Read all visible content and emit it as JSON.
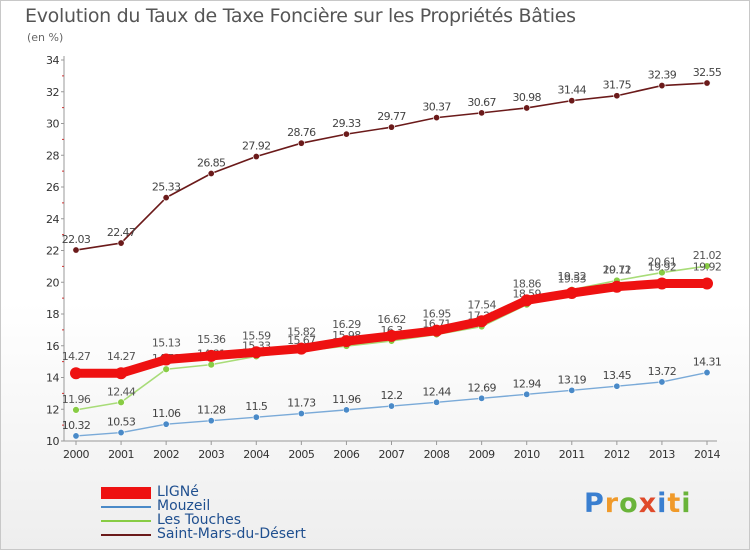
{
  "header": {
    "title": "Evolution du Taux de Taxe Foncière sur les Propriétés Bâties",
    "unit_note": "(en %)"
  },
  "logo": {
    "letters": [
      "P",
      "r",
      "o",
      "x",
      "i",
      "t",
      "i"
    ],
    "colors": [
      "#3a7fd0",
      "#f09a2a",
      "#6ab43a",
      "#e04a2a",
      "#3a7fd0",
      "#f09a2a",
      "#6ab43a"
    ]
  },
  "chart_data": {
    "type": "line",
    "x": [
      2000,
      2001,
      2002,
      2003,
      2004,
      2005,
      2006,
      2007,
      2008,
      2009,
      2010,
      2011,
      2012,
      2013,
      2014
    ],
    "ylim": [
      10,
      34
    ],
    "yticks": [
      10,
      12,
      14,
      16,
      18,
      20,
      22,
      24,
      26,
      28,
      30,
      32,
      34
    ],
    "grid": false,
    "legend_position": "bottom-left",
    "series": [
      {
        "name": "Saint-Mars-du-Désert",
        "color": "#6b1a1a",
        "values": [
          22.03,
          22.47,
          25.33,
          26.85,
          27.92,
          28.76,
          29.33,
          29.77,
          30.37,
          30.67,
          30.98,
          31.44,
          31.75,
          32.39,
          32.55
        ],
        "labels": [
          "22.03",
          "22.47",
          "25.33",
          "26.85",
          "27.92",
          "28.76",
          "29.33",
          "29.77",
          "30.37",
          "30.67",
          "30.98",
          "31.44",
          "31.75",
          "32.39",
          "32.55"
        ]
      },
      {
        "name": "Les Touches",
        "color": "#88cc44",
        "values": [
          11.96,
          12.44,
          14.52,
          14.81,
          15.33,
          15.67,
          15.98,
          16.3,
          16.71,
          17.21,
          18.59,
          19.53,
          20.11,
          20.61,
          21.02
        ],
        "labels": [
          "11.96",
          "12.44",
          "14.52",
          "14.81",
          "15.33",
          "15.67",
          "15.98",
          "16.3",
          "16.71",
          "17.21",
          "18.59",
          "19.53",
          "20.11",
          "20.61",
          "21.02"
        ]
      },
      {
        "name": "Mouzeil",
        "color": "#4a8ac8",
        "values": [
          10.32,
          10.53,
          11.06,
          11.28,
          11.5,
          11.73,
          11.96,
          12.2,
          12.44,
          12.69,
          12.94,
          13.19,
          13.45,
          13.72,
          14.31
        ],
        "labels": [
          "10.32",
          "10.53",
          "11.06",
          "11.28",
          "11.5",
          "11.73",
          "11.96",
          "12.2",
          "12.44",
          "12.69",
          "12.94",
          "13.19",
          "13.45",
          "13.72",
          "14.31"
        ]
      },
      {
        "name": "LIGNé",
        "color": "#ee1111",
        "values": [
          14.27,
          14.27,
          15.13,
          15.36,
          15.59,
          15.82,
          16.29,
          16.62,
          16.95,
          17.54,
          18.86,
          19.32,
          19.72,
          19.92,
          19.92
        ],
        "labels": [
          "14.27",
          "14.27",
          "15.13",
          "15.36",
          "15.59",
          "15.82",
          "16.29",
          "16.62",
          "16.95",
          "17.54",
          "18.86",
          "19.32",
          "19.72",
          "19.92",
          "19.92"
        ]
      }
    ]
  },
  "legend": [
    {
      "label": "LIGNé",
      "color": "#ee1111"
    },
    {
      "label": "Mouzeil",
      "color": "#4a8ac8"
    },
    {
      "label": "Les Touches",
      "color": "#88cc44"
    },
    {
      "label": "Saint-Mars-du-Désert",
      "color": "#6b1a1a"
    }
  ]
}
